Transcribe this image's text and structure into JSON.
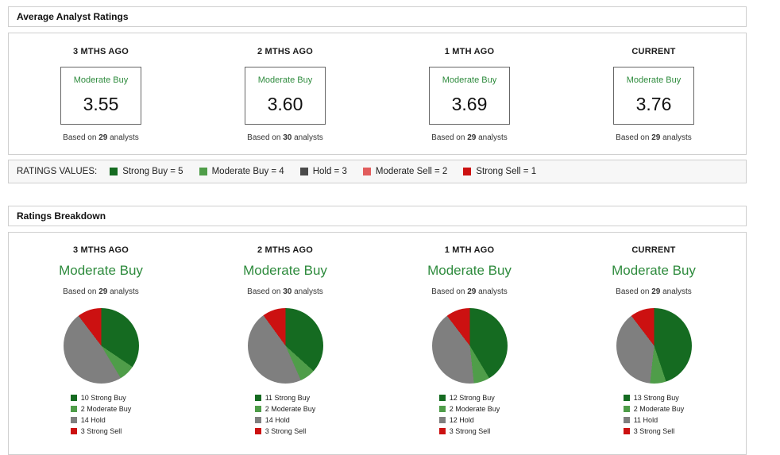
{
  "colors": {
    "accent_green_text": "#2e8b3d",
    "strong_buy": "#156b21",
    "moderate_buy": "#4f9d49",
    "hold_pie": "#7f7f7f",
    "hold_legend": "#4a4a4a",
    "moderate_sell": "#e25d5d",
    "strong_sell": "#cc1111",
    "panel_border": "#cfcfcf",
    "legend_bar_bg": "#f7f7f7"
  },
  "average_ratings": {
    "section_title": "Average Analyst Ratings",
    "columns": [
      {
        "period": "3 MTHS AGO",
        "rating": "Moderate Buy",
        "value": "3.55",
        "based_on": {
          "prefix": "Based on ",
          "count": "29",
          "suffix": " analysts"
        }
      },
      {
        "period": "2 MTHS AGO",
        "rating": "Moderate Buy",
        "value": "3.60",
        "based_on": {
          "prefix": "Based on ",
          "count": "30",
          "suffix": " analysts"
        }
      },
      {
        "period": "1 MTH AGO",
        "rating": "Moderate Buy",
        "value": "3.69",
        "based_on": {
          "prefix": "Based on ",
          "count": "29",
          "suffix": " analysts"
        }
      },
      {
        "period": "CURRENT",
        "rating": "Moderate Buy",
        "value": "3.76",
        "based_on": {
          "prefix": "Based on ",
          "count": "29",
          "suffix": " analysts"
        }
      }
    ],
    "legend": {
      "title": "RATINGS VALUES:",
      "items": [
        {
          "label": "Strong Buy = 5",
          "color": "#156b21"
        },
        {
          "label": "Moderate Buy = 4",
          "color": "#4f9d49"
        },
        {
          "label": "Hold = 3",
          "color": "#4a4a4a"
        },
        {
          "label": "Moderate Sell = 2",
          "color": "#e25d5d"
        },
        {
          "label": "Strong Sell = 1",
          "color": "#cc1111"
        }
      ]
    }
  },
  "ratings_breakdown": {
    "section_title": "Ratings Breakdown"
  },
  "chart_data": [
    {
      "type": "pie",
      "title": "3 MTHS AGO",
      "subtitle": "Moderate Buy",
      "based_on": {
        "prefix": "Based on ",
        "count": "29",
        "suffix": " analysts"
      },
      "labels": [
        "Strong Buy",
        "Moderate Buy",
        "Hold",
        "Strong Sell"
      ],
      "values": [
        10,
        2,
        14,
        3
      ],
      "colors": [
        "#156b21",
        "#4f9d49",
        "#7f7f7f",
        "#cc1111"
      ],
      "start_angle_deg": 0,
      "direction": "clockwise",
      "legend_position": "bottom"
    },
    {
      "type": "pie",
      "title": "2 MTHS AGO",
      "subtitle": "Moderate Buy",
      "based_on": {
        "prefix": "Based on ",
        "count": "30",
        "suffix": " analysts"
      },
      "labels": [
        "Strong Buy",
        "Moderate Buy",
        "Hold",
        "Strong Sell"
      ],
      "values": [
        11,
        2,
        14,
        3
      ],
      "colors": [
        "#156b21",
        "#4f9d49",
        "#7f7f7f",
        "#cc1111"
      ],
      "start_angle_deg": 0,
      "direction": "clockwise",
      "legend_position": "bottom"
    },
    {
      "type": "pie",
      "title": "1 MTH AGO",
      "subtitle": "Moderate Buy",
      "based_on": {
        "prefix": "Based on ",
        "count": "29",
        "suffix": " analysts"
      },
      "labels": [
        "Strong Buy",
        "Moderate Buy",
        "Hold",
        "Strong Sell"
      ],
      "values": [
        12,
        2,
        12,
        3
      ],
      "colors": [
        "#156b21",
        "#4f9d49",
        "#7f7f7f",
        "#cc1111"
      ],
      "start_angle_deg": 0,
      "direction": "clockwise",
      "legend_position": "bottom"
    },
    {
      "type": "pie",
      "title": "CURRENT",
      "subtitle": "Moderate Buy",
      "based_on": {
        "prefix": "Based on ",
        "count": "29",
        "suffix": " analysts"
      },
      "labels": [
        "Strong Buy",
        "Moderate Buy",
        "Hold",
        "Strong Sell"
      ],
      "values": [
        13,
        2,
        11,
        3
      ],
      "colors": [
        "#156b21",
        "#4f9d49",
        "#7f7f7f",
        "#cc1111"
      ],
      "start_angle_deg": 0,
      "direction": "clockwise",
      "legend_position": "bottom"
    }
  ]
}
